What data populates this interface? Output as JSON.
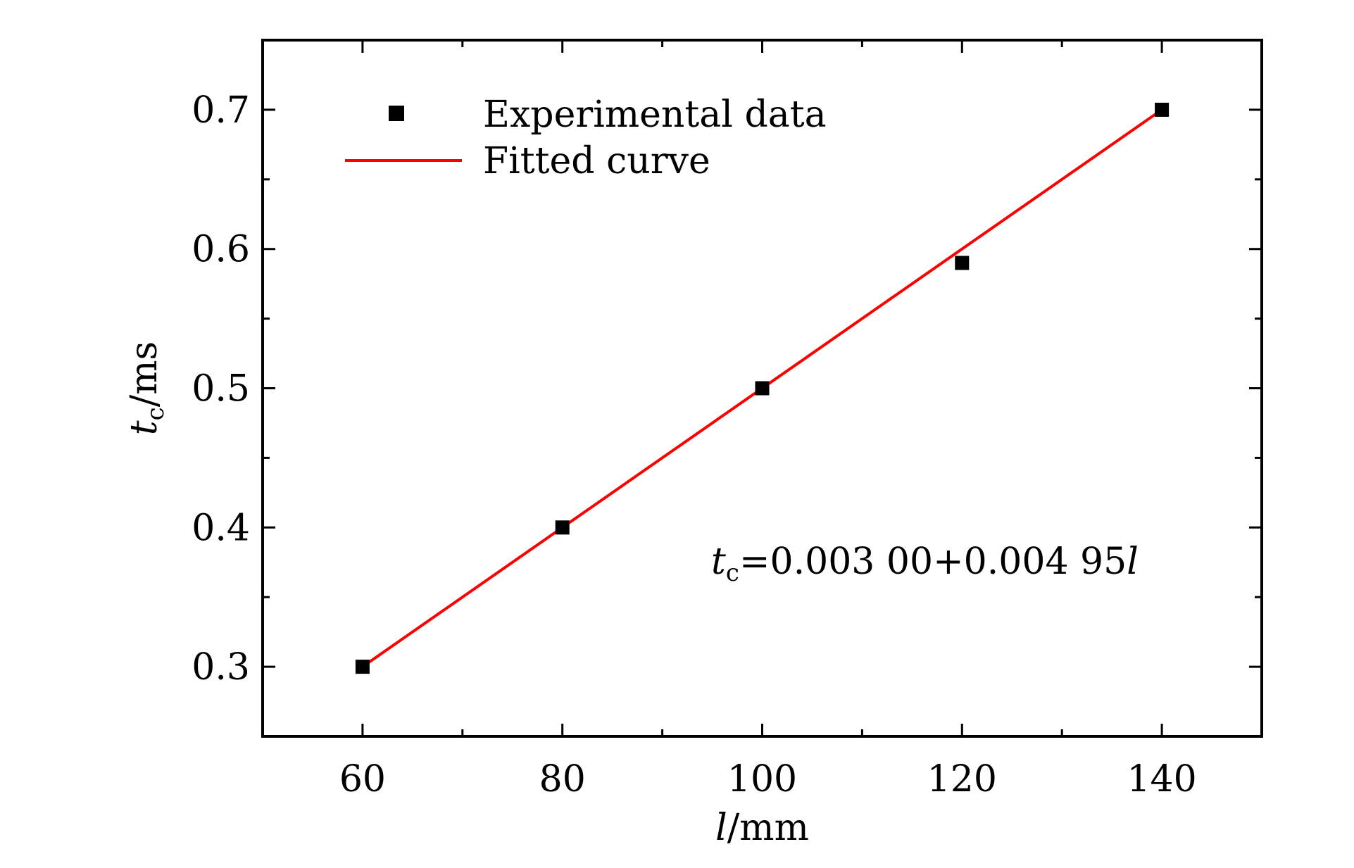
{
  "chart_data": {
    "type": "scatter",
    "xlabel": {
      "var": "l",
      "unit": "/mm"
    },
    "ylabel": {
      "var": "t",
      "sub": "c",
      "unit": "/ms"
    },
    "xlim": [
      50,
      150
    ],
    "ylim": [
      0.25,
      0.75
    ],
    "x_major_ticks": [
      60,
      80,
      100,
      120,
      140
    ],
    "x_minor_ticks": [
      70,
      90,
      110,
      130
    ],
    "y_major_ticks": [
      0.3,
      0.4,
      0.5,
      0.6,
      0.7
    ],
    "y_minor_ticks": [
      0.35,
      0.45,
      0.55,
      0.65
    ],
    "x_tick_labels": [
      "60",
      "80",
      "100",
      "120",
      "140"
    ],
    "y_tick_labels": [
      "0.3",
      "0.4",
      "0.5",
      "0.6",
      "0.7"
    ],
    "grid": false,
    "legend_position": "top-left",
    "series": [
      {
        "name": "Experimental data",
        "type": "scatter",
        "marker": "square",
        "color": "#000000",
        "x": [
          60,
          80,
          100,
          120,
          140
        ],
        "y": [
          0.3,
          0.4,
          0.5,
          0.59,
          0.7
        ]
      },
      {
        "name": "Fitted curve",
        "type": "line",
        "color": "#ff0000",
        "x": [
          60,
          140
        ],
        "y": [
          0.3,
          0.7
        ]
      }
    ],
    "annotation": {
      "var": "t",
      "sub": "c",
      "body": "=0.003 00+0.004 95",
      "tail": "l"
    }
  }
}
